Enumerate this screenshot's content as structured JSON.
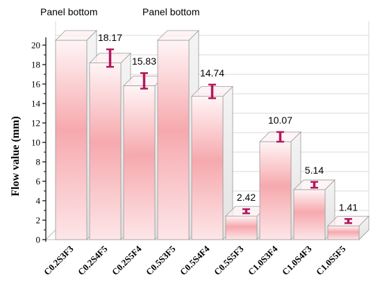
{
  "chart_data": {
    "type": "bar",
    "categories": [
      "C0.2S3F3",
      "C0.2S4F5",
      "C0.2S5F4",
      "C0.5S3F5",
      "C0.5S4F4",
      "C0.5S5F3",
      "C1.0S3F4",
      "C1.0S4F3",
      "C1.0S5F5"
    ],
    "values": [
      20.5,
      18.17,
      15.83,
      20.5,
      14.74,
      2.42,
      10.07,
      5.14,
      1.41
    ],
    "error": [
      0,
      0.9,
      0.8,
      0,
      0.7,
      0.2,
      0.5,
      0.3,
      0.1
    ],
    "value_labels": [
      "",
      "18.17",
      "15.83",
      "",
      "14.74",
      "2.42",
      "10.07",
      "5.14",
      "1.41"
    ],
    "bar_annotations": [
      "Panel bottom",
      "",
      "",
      "Panel bottom",
      "",
      "",
      "",
      "",
      ""
    ],
    "ylabel": "Flow value (mm)",
    "xlabel": "",
    "ylim": [
      0,
      20
    ],
    "yticks": [
      "0",
      "2",
      "4",
      "6",
      "8",
      "10",
      "12",
      "14",
      "16",
      "18",
      "20"
    ],
    "grid": true,
    "style": "3d-bar",
    "colors": {
      "bar": "#f29a9f",
      "error_bar": "#b5175c",
      "grid": "#d8d8d8"
    }
  }
}
